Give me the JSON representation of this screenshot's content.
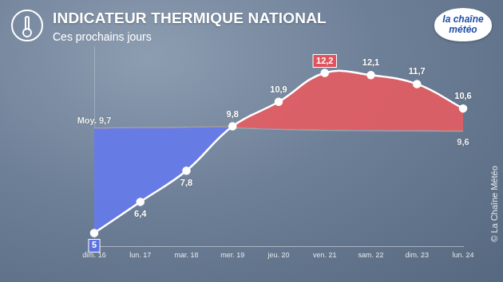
{
  "chart_data": {
    "type": "line",
    "title": "INDICATEUR THERMIQUE NATIONAL",
    "subtitle": "Ces prochains jours",
    "logo": "la chaîne météo",
    "source": "© La Chaîne Météo",
    "categories": [
      "dim. 16",
      "lun. 17",
      "mar. 18",
      "mer. 19",
      "jeu. 20",
      "ven. 21",
      "sam. 22",
      "dim. 23",
      "lun. 24"
    ],
    "series": [
      {
        "color": "#ffffff",
        "values": [
          5,
          6.4,
          7.8,
          9.8,
          10.9,
          12.2,
          12.1,
          11.7,
          10.6
        ],
        "value_labels": [
          "5",
          "6,4",
          "7,8",
          "9,8",
          "10,9",
          "12,2",
          "12,1",
          "11,7",
          "10,6"
        ],
        "marker": "circle"
      },
      {
        "color": "#a3a3a3",
        "values": [
          9.7,
          9.72,
          9.74,
          9.75,
          9.68,
          9.64,
          9.62,
          9.61,
          9.6
        ],
        "value_labels": [
          "Moy. 9,7",
          null,
          null,
          null,
          null,
          null,
          null,
          null,
          "9,6"
        ],
        "marker": "none"
      }
    ],
    "ylim": [
      4.4,
      13.4
    ],
    "grid": false,
    "data_labels": true,
    "tick_labels": "x"
  }
}
